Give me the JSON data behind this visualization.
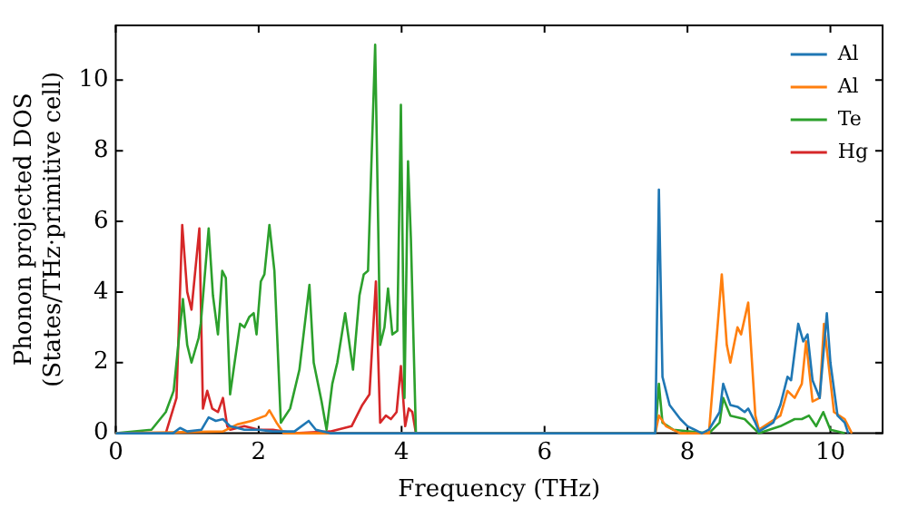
{
  "chart_data": {
    "type": "line",
    "xlabel": "Frequency (THz)",
    "ylabel": "Phonon projected DOS\n(States/THz·primitive cell)",
    "xlim": [
      0,
      10.73
    ],
    "ylim": [
      0,
      11.55
    ],
    "xticks": [
      0,
      2,
      4,
      6,
      8,
      10
    ],
    "yticks": [
      0,
      2,
      4,
      6,
      8,
      10
    ],
    "legend": "top right",
    "grid": false,
    "marker": "none",
    "line_style": "solid",
    "series": [
      {
        "name": "Al",
        "color": "#1f77b4",
        "x": [
          0,
          0.8,
          0.9,
          1.0,
          1.2,
          1.3,
          1.4,
          1.5,
          1.6,
          1.8,
          2.0,
          2.2,
          2.5,
          2.7,
          2.8,
          3.0,
          7.55,
          7.6,
          7.65,
          7.75,
          7.9,
          8.0,
          8.1,
          8.2,
          8.3,
          8.45,
          8.5,
          8.6,
          8.7,
          8.8,
          8.85,
          8.95,
          9.0,
          9.2,
          9.3,
          9.4,
          9.45,
          9.55,
          9.62,
          9.68,
          9.75,
          9.85,
          9.95,
          10.0,
          10.1,
          10.2,
          10.25
        ],
        "values": [
          0,
          0,
          0.15,
          0.05,
          0.1,
          0.45,
          0.35,
          0.4,
          0.2,
          0.1,
          0.1,
          0.05,
          0.05,
          0.35,
          0.1,
          0,
          0,
          6.9,
          1.6,
          0.8,
          0.4,
          0.2,
          0.1,
          0,
          0.1,
          0.6,
          1.4,
          0.8,
          0.75,
          0.6,
          0.7,
          0.3,
          0.05,
          0.3,
          0.8,
          1.6,
          1.5,
          3.1,
          2.6,
          2.8,
          1.5,
          1.0,
          3.4,
          2.0,
          0.5,
          0.3,
          0
        ]
      },
      {
        "name": "Al",
        "color": "#ff7f0e",
        "x": [
          0,
          1.5,
          1.7,
          1.9,
          2.1,
          2.15,
          2.25,
          2.35,
          7.55,
          7.6,
          7.7,
          7.9,
          8.3,
          8.48,
          8.55,
          8.6,
          8.7,
          8.75,
          8.85,
          8.95,
          9.0,
          9.3,
          9.4,
          9.5,
          9.6,
          9.66,
          9.75,
          9.85,
          9.91,
          10.05,
          10.2,
          10.3
        ],
        "values": [
          0,
          0.05,
          0.25,
          0.35,
          0.5,
          0.65,
          0.3,
          0,
          0,
          0.5,
          0.2,
          0,
          0,
          4.5,
          2.5,
          2.0,
          3.0,
          2.8,
          3.7,
          0.5,
          0.1,
          0.5,
          1.2,
          1.0,
          1.4,
          2.6,
          0.9,
          1.0,
          3.1,
          0.6,
          0.4,
          0
        ]
      },
      {
        "name": "Te",
        "color": "#2ca02c",
        "x": [
          0,
          0.5,
          0.7,
          0.81,
          0.94,
          1.0,
          1.06,
          1.16,
          1.19,
          1.3,
          1.36,
          1.43,
          1.49,
          1.54,
          1.6,
          1.74,
          1.8,
          1.87,
          1.93,
          1.97,
          2.03,
          2.08,
          2.15,
          2.22,
          2.31,
          2.44,
          2.57,
          2.71,
          2.77,
          2.88,
          2.95,
          3.03,
          3.1,
          3.21,
          3.32,
          3.41,
          3.47,
          3.53,
          3.63,
          3.7,
          3.76,
          3.81,
          3.87,
          3.94,
          3.99,
          4.04,
          4.09,
          4.13,
          4.2,
          7.55,
          7.6,
          7.65,
          7.8,
          8.3,
          8.45,
          8.5,
          8.6,
          8.8,
          8.9,
          9.0,
          9.3,
          9.5,
          9.6,
          9.7,
          9.8,
          9.9,
          10.0,
          10.2
        ],
        "values": [
          0,
          0.1,
          0.6,
          1.2,
          3.8,
          2.5,
          2.0,
          2.7,
          3.1,
          5.8,
          3.9,
          2.8,
          4.6,
          4.4,
          1.1,
          3.1,
          3.0,
          3.3,
          3.4,
          2.8,
          4.3,
          4.5,
          5.9,
          4.6,
          0.3,
          0.7,
          1.8,
          4.2,
          2.0,
          0.9,
          0.1,
          1.4,
          2.0,
          3.4,
          1.8,
          3.9,
          4.5,
          4.6,
          11.0,
          2.5,
          3.0,
          4.1,
          2.8,
          2.9,
          9.3,
          1.0,
          7.7,
          5.5,
          0,
          0,
          1.4,
          0.3,
          0.1,
          0,
          0.3,
          1.0,
          0.5,
          0.4,
          0.2,
          0,
          0.2,
          0.4,
          0.4,
          0.5,
          0.2,
          0.6,
          0.1,
          0
        ]
      },
      {
        "name": "Hg",
        "color": "#d62728",
        "x": [
          0,
          0.7,
          0.85,
          0.93,
          1.0,
          1.06,
          1.17,
          1.22,
          1.28,
          1.35,
          1.43,
          1.5,
          1.56,
          1.6,
          1.8,
          2.0,
          2.2,
          2.5,
          3.0,
          3.3,
          3.45,
          3.55,
          3.64,
          3.7,
          3.78,
          3.85,
          3.93,
          3.99,
          4.05,
          4.1,
          4.15,
          4.2
        ],
        "values": [
          0,
          0,
          1.0,
          5.9,
          4.0,
          3.5,
          5.8,
          0.7,
          1.2,
          0.7,
          0.6,
          1.0,
          0.2,
          0.1,
          0.2,
          0.1,
          0.1,
          0,
          0.05,
          0.2,
          0.8,
          1.1,
          4.3,
          0.3,
          0.5,
          0.4,
          0.6,
          1.9,
          0.2,
          0.7,
          0.6,
          0
        ]
      }
    ]
  }
}
